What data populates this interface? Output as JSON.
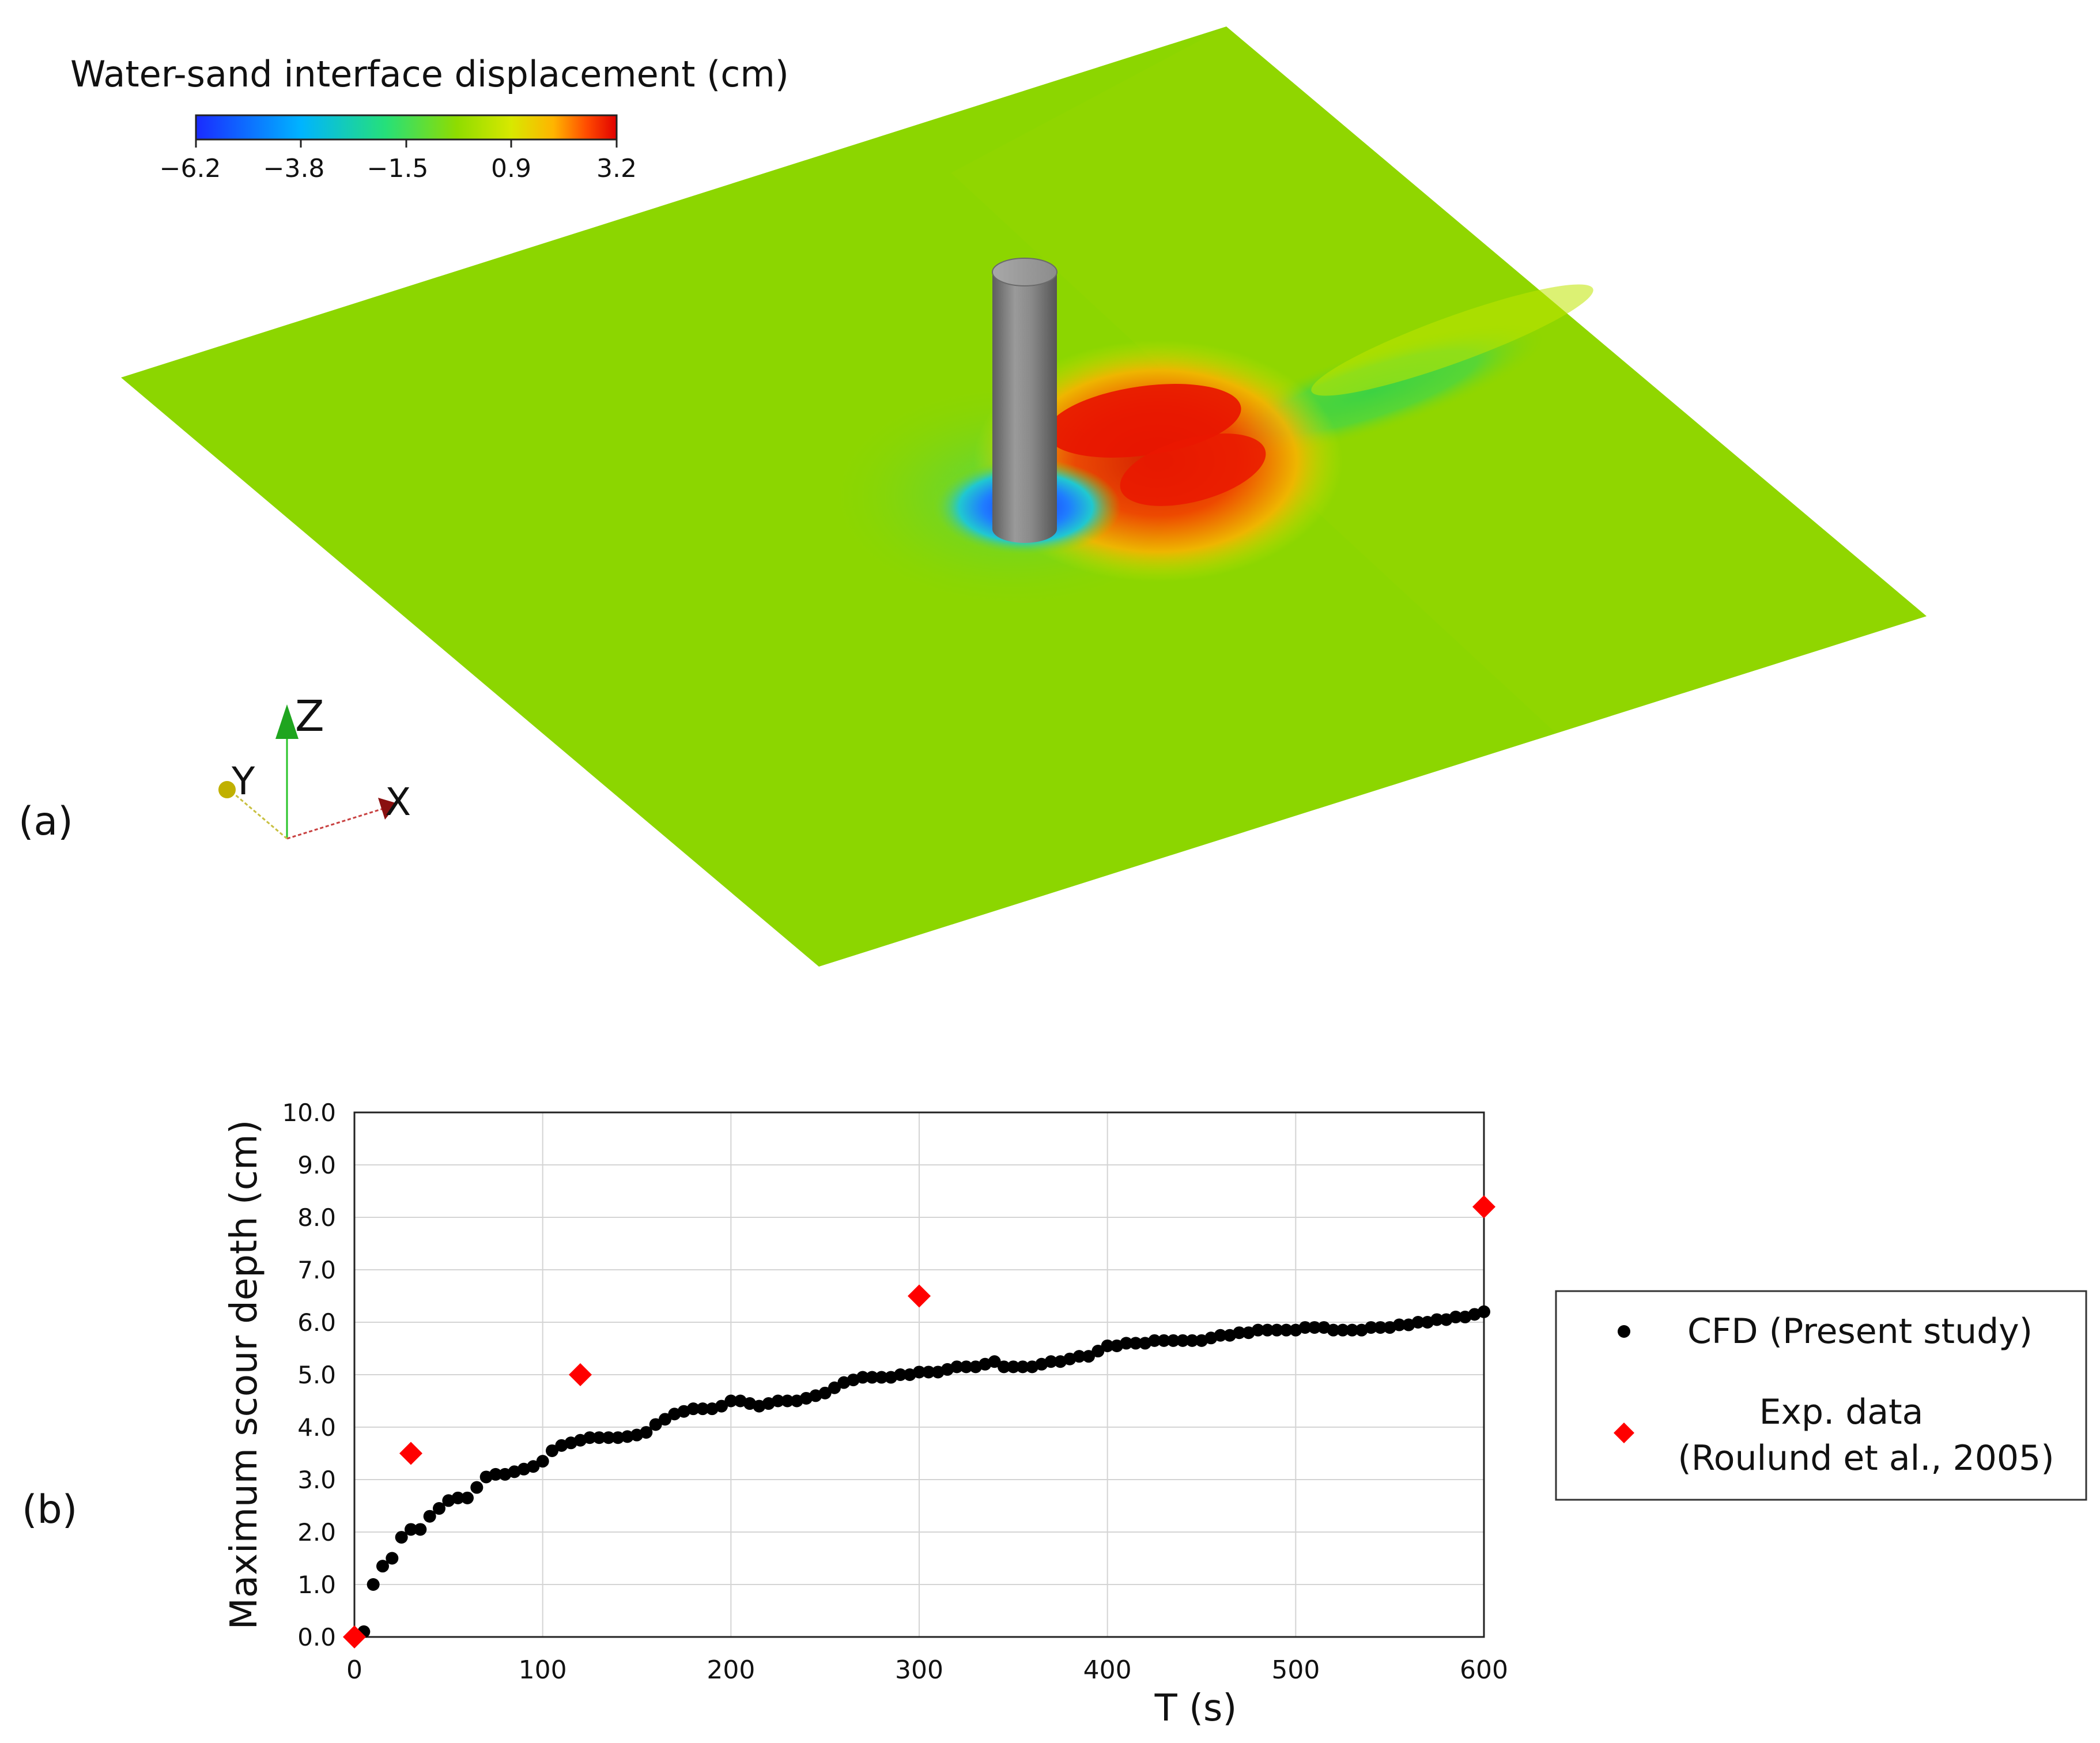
{
  "panel_a": {
    "label": "(a)",
    "colorbar": {
      "title": "Water-sand interface displacement (cm)",
      "ticks": [
        "−6.2",
        "−3.8",
        "−1.5",
        "0.9",
        "3.2"
      ],
      "colors": [
        "#1a2bff",
        "#00b4ff",
        "#25e07a",
        "#8fdc00",
        "#d8e800",
        "#ffb400",
        "#ff4a00",
        "#e00000"
      ]
    },
    "axes_triad": {
      "x": "X",
      "y": "Y",
      "z": "Z"
    },
    "surface_color": "#8cd600",
    "pile_color": "#8a8a8a"
  },
  "panel_b": {
    "label": "(b)",
    "legend": {
      "cfd": "CFD (Present study)",
      "exp_line1": "Exp. data",
      "exp_line2": "(Roulund et al., 2005)"
    }
  },
  "chart_data": {
    "type": "scatter",
    "xlabel": "T (s)",
    "ylabel": "Maximum scour depth (cm)",
    "xlim": [
      0,
      600
    ],
    "ylim": [
      0,
      10
    ],
    "x_ticks": [
      "0",
      "100",
      "200",
      "300",
      "400",
      "500",
      "600"
    ],
    "y_ticks": [
      "0.0",
      "1.0",
      "2.0",
      "3.0",
      "4.0",
      "5.0",
      "6.0",
      "7.0",
      "8.0",
      "9.0",
      "10.0"
    ],
    "grid": true,
    "legend_position": "right",
    "series": [
      {
        "name": "CFD (Present study)",
        "marker": "circle",
        "color": "#000000",
        "x": [
          0,
          5,
          10,
          15,
          20,
          25,
          30,
          35,
          40,
          45,
          50,
          55,
          60,
          65,
          70,
          75,
          80,
          85,
          90,
          95,
          100,
          105,
          110,
          115,
          120,
          125,
          130,
          135,
          140,
          145,
          150,
          155,
          160,
          165,
          170,
          175,
          180,
          185,
          190,
          195,
          200,
          205,
          210,
          215,
          220,
          225,
          230,
          235,
          240,
          245,
          250,
          255,
          260,
          265,
          270,
          275,
          280,
          285,
          290,
          295,
          300,
          305,
          310,
          315,
          320,
          325,
          330,
          335,
          340,
          345,
          350,
          355,
          360,
          365,
          370,
          375,
          380,
          385,
          390,
          395,
          400,
          405,
          410,
          415,
          420,
          425,
          430,
          435,
          440,
          445,
          450,
          455,
          460,
          465,
          470,
          475,
          480,
          485,
          490,
          495,
          500,
          505,
          510,
          515,
          520,
          525,
          530,
          535,
          540,
          545,
          550,
          555,
          560,
          565,
          570,
          575,
          580,
          585,
          590,
          595,
          600
        ],
        "y": [
          0.0,
          0.1,
          1.0,
          1.35,
          1.5,
          1.9,
          2.05,
          2.05,
          2.3,
          2.45,
          2.6,
          2.65,
          2.65,
          2.85,
          3.05,
          3.1,
          3.1,
          3.15,
          3.2,
          3.25,
          3.35,
          3.55,
          3.65,
          3.7,
          3.75,
          3.8,
          3.8,
          3.8,
          3.8,
          3.82,
          3.85,
          3.9,
          4.05,
          4.15,
          4.25,
          4.3,
          4.35,
          4.35,
          4.35,
          4.4,
          4.5,
          4.5,
          4.45,
          4.4,
          4.45,
          4.5,
          4.5,
          4.5,
          4.55,
          4.6,
          4.65,
          4.75,
          4.85,
          4.9,
          4.95,
          4.95,
          4.95,
          4.95,
          5.0,
          5.0,
          5.05,
          5.05,
          5.05,
          5.1,
          5.15,
          5.15,
          5.15,
          5.2,
          5.25,
          5.15,
          5.15,
          5.15,
          5.15,
          5.2,
          5.25,
          5.25,
          5.3,
          5.35,
          5.35,
          5.45,
          5.55,
          5.55,
          5.6,
          5.6,
          5.6,
          5.65,
          5.65,
          5.65,
          5.65,
          5.65,
          5.65,
          5.7,
          5.75,
          5.75,
          5.8,
          5.8,
          5.85,
          5.85,
          5.85,
          5.85,
          5.85,
          5.9,
          5.9,
          5.9,
          5.85,
          5.85,
          5.85,
          5.85,
          5.9,
          5.9,
          5.9,
          5.95,
          5.95,
          6.0,
          6.0,
          6.05,
          6.05,
          6.1,
          6.1,
          6.15,
          6.2
        ]
      },
      {
        "name": "Exp. data (Roulund et al., 2005)",
        "marker": "diamond",
        "color": "#ff0000",
        "x": [
          0,
          30,
          120,
          300,
          600
        ],
        "y": [
          0.0,
          3.5,
          5.0,
          6.5,
          8.2
        ]
      }
    ]
  }
}
